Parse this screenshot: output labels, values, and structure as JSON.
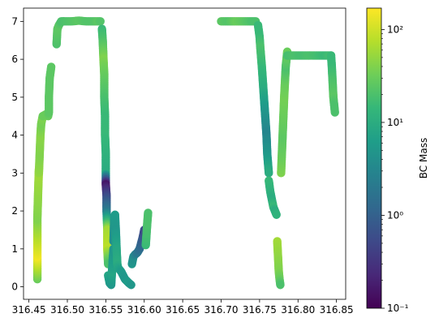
{
  "chart_data": {
    "type": "scatter",
    "title": "",
    "xlabel": "",
    "ylabel": "",
    "xlim": [
      316.443,
      316.862
    ],
    "ylim": [
      -0.33,
      7.35
    ],
    "x_ticks": [
      316.45,
      316.5,
      316.55,
      316.6,
      316.65,
      316.7,
      316.75,
      316.8,
      316.85
    ],
    "x_tick_labels": [
      "316.45",
      "316.50",
      "316.55",
      "316.60",
      "316.65",
      "316.70",
      "316.75",
      "316.80",
      "316.85"
    ],
    "y_ticks": [
      0,
      1,
      2,
      3,
      4,
      5,
      6,
      7
    ],
    "y_tick_labels": [
      "0",
      "1",
      "2",
      "3",
      "4",
      "5",
      "6",
      "7"
    ],
    "grid": false,
    "colorbar": {
      "label": "BC Mass",
      "scale": "log",
      "range": [
        0.1,
        170
      ],
      "ticks": [
        0.1,
        1,
        10,
        100
      ],
      "tick_labels": [
        "10⁻¹",
        "10⁰",
        "10¹",
        "10²"
      ],
      "colormap": "viridis",
      "colormap_stops": [
        "#440154",
        "#482878",
        "#3e4989",
        "#31688e",
        "#26828e",
        "#1f9e89",
        "#35b779",
        "#6ece58",
        "#b5de2b",
        "#fde725"
      ]
    },
    "series": [
      {
        "segments": [
          {
            "x": [
              316.461,
              316.461,
              316.461,
              316.462,
              316.463
            ],
            "y": [
              0.2,
              0.8,
              1.8,
              2.5,
              3.1
            ],
            "c": [
              30,
              150,
              40,
              50,
              60
            ]
          },
          {
            "x": [
              316.463,
              316.464,
              316.465,
              316.466,
              316.468
            ],
            "y": [
              3.0,
              3.5,
              4.0,
              4.3,
              4.5
            ],
            "c": [
              50,
              40,
              45,
              35,
              40
            ]
          },
          {
            "x": [
              316.468,
              316.472,
              316.475,
              316.476,
              316.476,
              316.477,
              316.479
            ],
            "y": [
              4.5,
              4.55,
              4.5,
              4.6,
              5.0,
              5.5,
              5.8
            ],
            "c": [
              30,
              30,
              30,
              25,
              25,
              25,
              25
            ]
          },
          {
            "x": [
              316.486,
              316.487,
              316.489,
              316.492,
              316.495
            ],
            "y": [
              6.4,
              6.8,
              6.9,
              7.0,
              7.0
            ],
            "c": [
              20,
              25,
              25,
              20,
              20
            ]
          },
          {
            "x": [
              316.495,
              316.505,
              316.515,
              316.525,
              316.535,
              316.54,
              316.543
            ],
            "y": [
              7.0,
              7.0,
              7.02,
              7.0,
              7.0,
              7.0,
              7.0
            ],
            "c": [
              20,
              22,
              25,
              22,
              22,
              25,
              22
            ]
          },
          {
            "x": [
              316.545,
              316.546,
              316.547,
              316.548,
              316.548,
              316.549,
              316.549,
              316.55,
              316.55,
              316.55,
              316.551,
              316.551,
              316.552,
              316.552,
              316.553
            ],
            "y": [
              6.8,
              6.5,
              6.0,
              5.6,
              5.0,
              4.5,
              4.0,
              3.5,
              3.0,
              2.7,
              2.4,
              2.0,
              1.5,
              1.0,
              0.6
            ],
            "c": [
              15,
              20,
              40,
              30,
              20,
              15,
              15,
              12,
              10,
              0.15,
              0.5,
              2,
              60,
              80,
              20
            ]
          },
          {
            "x": [
              316.553,
              316.555,
              316.557,
              316.558,
              316.56
            ],
            "y": [
              0.3,
              0.1,
              0.05,
              0.4,
              1.0
            ],
            "c": [
              8,
              6,
              5,
              8,
              5
            ]
          },
          {
            "x": [
              316.56,
              316.561,
              316.562,
              316.563,
              316.564,
              316.565,
              316.566
            ],
            "y": [
              1.2,
              1.8,
              1.9,
              1.5,
              1.0,
              0.6,
              0.5
            ],
            "c": [
              4,
              5,
              6,
              5,
              8,
              10,
              8
            ]
          },
          {
            "x": [
              316.566,
              316.57,
              316.575,
              316.58,
              316.583
            ],
            "y": [
              0.5,
              0.4,
              0.2,
              0.1,
              0.05
            ],
            "c": [
              8,
              6,
              5,
              6,
              5
            ]
          },
          {
            "x": [
              316.584,
              316.586,
              316.588,
              316.591,
              316.594,
              316.598,
              316.6
            ],
            "y": [
              0.6,
              0.8,
              0.85,
              0.9,
              1.0,
              1.3,
              1.5
            ],
            "c": [
              5,
              4,
              3,
              2,
              1.5,
              0.8,
              0.5
            ]
          },
          {
            "x": [
              316.602,
              316.603,
              316.604,
              316.605
            ],
            "y": [
              1.1,
              1.4,
              1.7,
              1.95
            ],
            "c": [
              15,
              18,
              20,
              20
            ]
          },
          {
            "x": [
              316.7,
              316.71,
              316.72,
              316.73,
              316.74,
              316.745
            ],
            "y": [
              7.0,
              7.0,
              7.0,
              7.0,
              7.0,
              7.0
            ],
            "c": [
              25,
              22,
              30,
              25,
              20,
              20
            ]
          },
          {
            "x": [
              316.748,
              316.75,
              316.751,
              316.753,
              316.755,
              316.757,
              316.759,
              316.76,
              316.762
            ],
            "y": [
              6.9,
              6.6,
              6.3,
              5.8,
              5.2,
              4.6,
              4.0,
              3.5,
              3.0
            ],
            "c": [
              15,
              15,
              20,
              15,
              10,
              5,
              3,
              5,
              10
            ]
          },
          {
            "x": [
              316.762,
              316.764,
              316.766,
              316.768,
              316.77,
              316.772
            ],
            "y": [
              2.8,
              2.5,
              2.3,
              2.1,
              2.0,
              1.9
            ],
            "c": [
              15,
              12,
              10,
              15,
              10,
              12
            ]
          },
          {
            "x": [
              316.773,
              316.774,
              316.775,
              316.776,
              316.777
            ],
            "y": [
              1.2,
              0.8,
              0.4,
              0.2,
              0.05
            ],
            "c": [
              60,
              50,
              40,
              30,
              20
            ]
          },
          {
            "x": [
              316.778,
              316.779,
              316.78,
              316.781,
              316.782,
              316.783,
              316.784,
              316.785,
              316.786
            ],
            "y": [
              3.0,
              3.5,
              4.0,
              4.5,
              5.0,
              5.4,
              5.8,
              6.0,
              6.2
            ],
            "c": [
              40,
              30,
              25,
              30,
              35,
              30,
              20,
              25,
              30
            ]
          },
          {
            "x": [
              316.786,
              316.795,
              316.805,
              316.815,
              316.825,
              316.835,
              316.843
            ],
            "y": [
              6.1,
              6.1,
              6.1,
              6.1,
              6.1,
              6.1,
              6.1
            ],
            "c": [
              18,
              20,
              18,
              20,
              18,
              15,
              18
            ]
          },
          {
            "x": [
              316.843,
              316.844,
              316.845,
              316.846,
              316.847,
              316.848
            ],
            "y": [
              6.1,
              5.8,
              5.4,
              5.0,
              4.8,
              4.6
            ],
            "c": [
              15,
              15,
              20,
              25,
              20,
              20
            ]
          }
        ]
      }
    ]
  }
}
